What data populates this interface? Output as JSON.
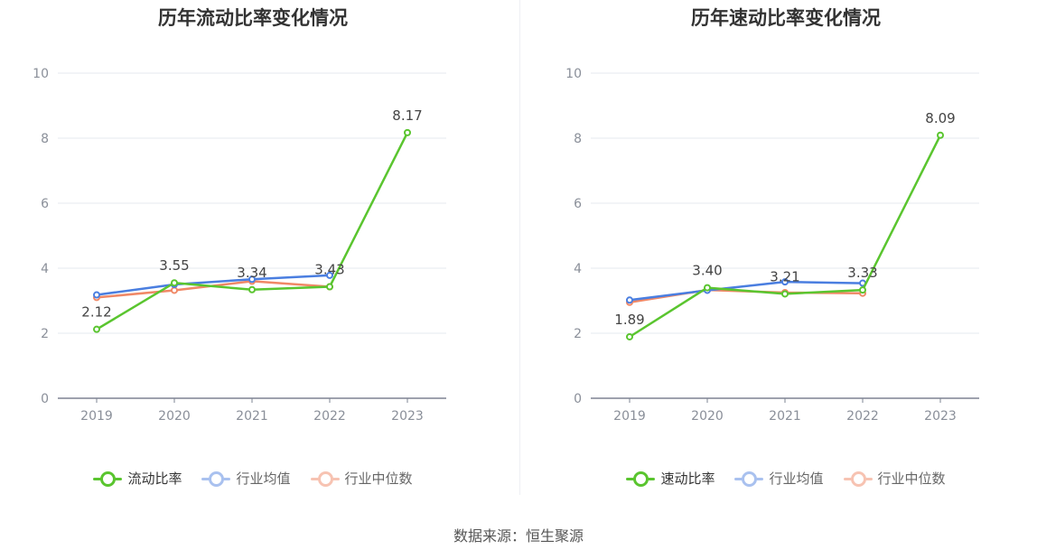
{
  "colors": {
    "main": "#5ac52f",
    "avg": "#4a7ee0",
    "median": "#f08866"
  },
  "source": "数据来源：恒生聚源",
  "chart_data": [
    {
      "type": "line",
      "title": "历年流动比率变化情况",
      "x": [
        "2019",
        "2020",
        "2021",
        "2022",
        "2023"
      ],
      "ylim": [
        0,
        10
      ],
      "yticks": [
        0,
        2,
        4,
        6,
        8,
        10
      ],
      "grid": true,
      "legend_position": "bottom",
      "series": [
        {
          "name": "流动比率",
          "color": "#5ac52f",
          "values": [
            2.12,
            3.55,
            3.34,
            3.43,
            8.17
          ],
          "labels": [
            "2.12",
            "3.55",
            "3.34",
            "3.43",
            "8.17"
          ]
        },
        {
          "name": "行业均值",
          "color": "#4a7ee0",
          "values": [
            3.18,
            3.5,
            3.66,
            3.78,
            null
          ]
        },
        {
          "name": "行业中位数",
          "color": "#f08866",
          "values": [
            3.1,
            3.32,
            3.6,
            3.43,
            null
          ]
        }
      ]
    },
    {
      "type": "line",
      "title": "历年速动比率变化情况",
      "x": [
        "2019",
        "2020",
        "2021",
        "2022",
        "2023"
      ],
      "ylim": [
        0,
        10
      ],
      "yticks": [
        0,
        2,
        4,
        6,
        8,
        10
      ],
      "grid": true,
      "legend_position": "bottom",
      "series": [
        {
          "name": "速动比率",
          "color": "#5ac52f",
          "values": [
            1.89,
            3.4,
            3.21,
            3.33,
            8.09
          ],
          "labels": [
            "1.89",
            "3.40",
            "3.21",
            "3.33",
            "8.09"
          ]
        },
        {
          "name": "行业均值",
          "color": "#4a7ee0",
          "values": [
            3.02,
            3.32,
            3.58,
            3.54,
            null
          ]
        },
        {
          "name": "行业中位数",
          "color": "#f08866",
          "values": [
            2.95,
            3.33,
            3.25,
            3.23,
            null
          ]
        }
      ]
    }
  ]
}
